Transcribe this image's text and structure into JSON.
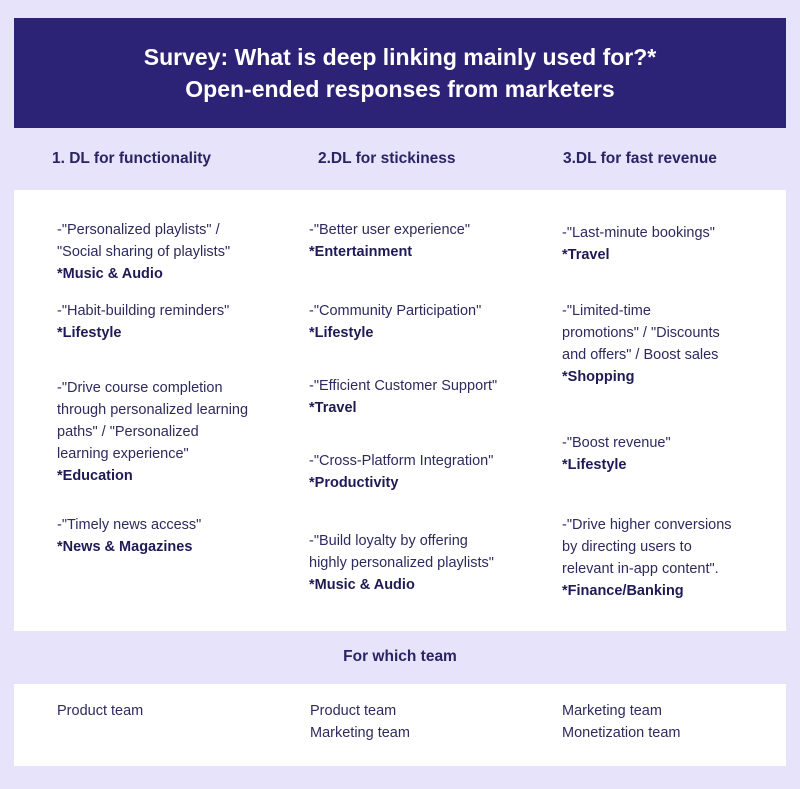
{
  "header": {
    "line1": "Survey: What is deep linking mainly used for?*",
    "line2": "Open-ended responses from marketers"
  },
  "columns": [
    {
      "title": "1. DL  for functionality",
      "entries": [
        {
          "lines": [
            "-\"Personalized playlists\" /",
            "\"Social sharing of playlists\""
          ],
          "category": "*Music & Audio"
        },
        {
          "lines": [
            "-\"Habit-building reminders\""
          ],
          "category": "*Lifestyle"
        },
        {
          "lines": [
            "-\"Drive course completion",
            "through personalized learning",
            "paths\" / \"Personalized",
            "learning experience\""
          ],
          "category": "*Education"
        },
        {
          "lines": [
            "-\"Timely news access\""
          ],
          "category": "*News & Magazines"
        }
      ]
    },
    {
      "title": "2.DL  for stickiness",
      "entries": [
        {
          "lines": [
            "-\"Better user experience\""
          ],
          "category": "*Entertainment"
        },
        {
          "lines": [
            "-\"Community Participation\""
          ],
          "category": "*Lifestyle"
        },
        {
          "lines": [
            "-\"Efficient Customer Support\""
          ],
          "category": "*Travel"
        },
        {
          "lines": [
            "-\"Cross-Platform Integration\""
          ],
          "category": "*Productivity"
        },
        {
          "lines": [
            "-\"Build loyalty by offering",
            "highly personalized playlists\""
          ],
          "category": "*Music & Audio"
        }
      ]
    },
    {
      "title": "3.DL  for fast revenue",
      "entries": [
        {
          "lines": [
            "-\"Last-minute bookings\""
          ],
          "category": "*Travel"
        },
        {
          "lines": [
            "-\"Limited-time",
            "promotions\" / \"Discounts",
            "and offers\" / Boost sales"
          ],
          "category": "*Shopping"
        },
        {
          "lines": [
            "-\"Boost revenue\""
          ],
          "category": "*Lifestyle"
        },
        {
          "lines": [
            "-\"Drive higher conversions",
            "by directing users to",
            "relevant in-app content\"."
          ],
          "category": "*Finance/Banking"
        }
      ]
    }
  ],
  "team_section": {
    "title": "For which team",
    "teams": [
      [
        "Product team"
      ],
      [
        "Product team",
        "Marketing team"
      ],
      [
        "Marketing team",
        "Monetization team"
      ]
    ]
  }
}
